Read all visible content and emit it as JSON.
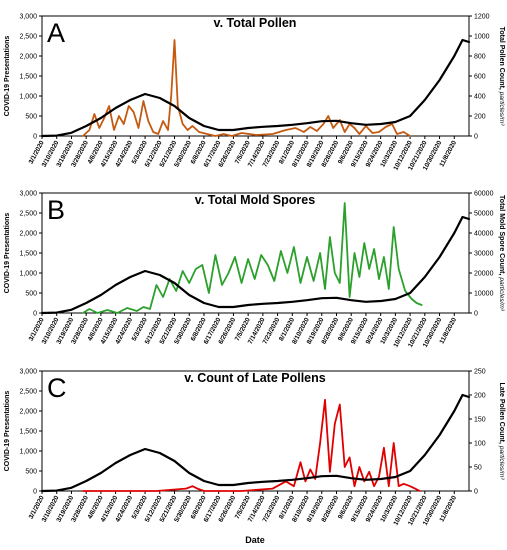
{
  "figure": {
    "xlabel": "Date",
    "x_ticks": [
      "3/1/2020",
      "3/10/2020",
      "3/19/2020",
      "3/28/2020",
      "4/6/2020",
      "4/15/2020",
      "4/24/2020",
      "5/3/2020",
      "5/12/2020",
      "5/21/2020",
      "5/30/2020",
      "6/8/2020",
      "6/17/2020",
      "6/26/2020",
      "7/5/2020",
      "7/14/2020",
      "7/23/2020",
      "8/1/2020",
      "8/10/2020",
      "8/19/2020",
      "8/28/2020",
      "9/6/2020",
      "9/15/2020",
      "9/24/2020",
      "10/3/2020",
      "10/12/2020",
      "10/21/2020",
      "10/30/2020",
      "11/8/2020"
    ]
  },
  "chart_data": [
    {
      "type": "line",
      "panel_letter": "A",
      "title": "v. Total Pollen",
      "ylabel_left": "COVID-19 Presentations",
      "ylabel_right_main": "Total Pollen Count, ",
      "ylabel_right_unit": "particles/m³",
      "ylim_left": [
        0,
        3000
      ],
      "ylim_right": [
        0,
        1200
      ],
      "yticks_left": [
        "0",
        "500",
        "1,000",
        "1,500",
        "2,000",
        "2,500",
        "3,000"
      ],
      "yticks_right": [
        "0",
        "200",
        "400",
        "600",
        "800",
        "1000",
        "1200"
      ],
      "series": [
        {
          "axis": "left",
          "color": "#000000",
          "x": [
            "3/1/2020",
            "3/10/2020",
            "3/19/2020",
            "3/28/2020",
            "4/6/2020",
            "4/15/2020",
            "4/24/2020",
            "5/3/2020",
            "5/12/2020",
            "5/21/2020",
            "5/30/2020",
            "6/8/2020",
            "6/17/2020",
            "6/26/2020",
            "7/5/2020",
            "7/14/2020",
            "7/23/2020",
            "8/1/2020",
            "8/10/2020",
            "8/19/2020",
            "8/28/2020",
            "9/6/2020",
            "9/15/2020",
            "9/24/2020",
            "10/3/2020",
            "10/12/2020",
            "10/21/2020",
            "10/30/2020",
            "11/8/2020",
            "11/13/2020",
            "11/17/2020"
          ],
          "values": [
            0,
            10,
            80,
            250,
            450,
            700,
            900,
            1050,
            950,
            750,
            450,
            250,
            150,
            150,
            200,
            230,
            250,
            280,
            320,
            370,
            380,
            320,
            280,
            300,
            350,
            500,
            900,
            1400,
            2000,
            2400,
            2350
          ]
        },
        {
          "axis": "right",
          "color": "#c55a11",
          "x": [
            "3/26/2020",
            "3/30/2020",
            "4/2/2020",
            "4/5/2020",
            "4/8/2020",
            "4/11/2020",
            "4/14/2020",
            "4/17/2020",
            "4/20/2020",
            "4/23/2020",
            "4/26/2020",
            "4/29/2020",
            "5/2/2020",
            "5/5/2020",
            "5/8/2020",
            "5/11/2020",
            "5/14/2020",
            "5/17/2020",
            "5/19/2020",
            "5/21/2020",
            "5/23/2020",
            "5/26/2020",
            "5/29/2020",
            "6/1/2020",
            "6/5/2020",
            "6/10/2020",
            "6/15/2020",
            "6/20/2020",
            "6/25/2020",
            "7/1/2020",
            "7/10/2020",
            "7/20/2020",
            "7/28/2020",
            "8/3/2020",
            "8/8/2020",
            "8/12/2020",
            "8/16/2020",
            "8/20/2020",
            "8/23/2020",
            "8/26/2020",
            "8/30/2020",
            "9/2/2020",
            "9/5/2020",
            "9/8/2020",
            "9/11/2020",
            "9/15/2020",
            "9/19/2020",
            "9/23/2020",
            "9/27/2020",
            "10/1/2020",
            "10/4/2020",
            "10/8/2020",
            "10/12/2020"
          ],
          "values": [
            0,
            60,
            220,
            80,
            180,
            300,
            60,
            200,
            120,
            300,
            240,
            80,
            350,
            150,
            40,
            20,
            150,
            60,
            400,
            960,
            300,
            120,
            60,
            100,
            40,
            20,
            0,
            20,
            0,
            30,
            10,
            20,
            60,
            80,
            40,
            90,
            50,
            120,
            200,
            80,
            160,
            40,
            120,
            80,
            20,
            100,
            30,
            40,
            90,
            120,
            20,
            40,
            0
          ]
        }
      ]
    },
    {
      "type": "line",
      "panel_letter": "B",
      "title": "v. Total Mold Spores",
      "ylabel_left": "COVID-19 Presentations",
      "ylabel_right_main": "Total Mold Spore Count, ",
      "ylabel_right_unit": "particles/m³",
      "ylim_left": [
        0,
        3000
      ],
      "ylim_right": [
        0,
        60000
      ],
      "yticks_left": [
        "0",
        "500",
        "1,000",
        "1,500",
        "2,000",
        "2,500",
        "3,000"
      ],
      "yticks_right": [
        "0",
        "10000",
        "20000",
        "30000",
        "40000",
        "50000",
        "60000"
      ],
      "series": [
        {
          "axis": "left",
          "color": "#000000",
          "x": [
            "3/1/2020",
            "3/10/2020",
            "3/19/2020",
            "3/28/2020",
            "4/6/2020",
            "4/15/2020",
            "4/24/2020",
            "5/3/2020",
            "5/12/2020",
            "5/21/2020",
            "5/30/2020",
            "6/8/2020",
            "6/17/2020",
            "6/26/2020",
            "7/5/2020",
            "7/14/2020",
            "7/23/2020",
            "8/1/2020",
            "8/10/2020",
            "8/19/2020",
            "8/28/2020",
            "9/6/2020",
            "9/15/2020",
            "9/24/2020",
            "10/3/2020",
            "10/12/2020",
            "10/21/2020",
            "10/30/2020",
            "11/8/2020",
            "11/13/2020",
            "11/17/2020"
          ],
          "values": [
            0,
            10,
            80,
            250,
            450,
            700,
            900,
            1050,
            950,
            750,
            450,
            250,
            150,
            150,
            200,
            230,
            250,
            280,
            320,
            370,
            380,
            320,
            280,
            300,
            350,
            500,
            900,
            1400,
            2000,
            2400,
            2350
          ]
        },
        {
          "axis": "right",
          "color": "#2ca02c",
          "x": [
            "3/26/2020",
            "3/30/2020",
            "4/4/2020",
            "4/10/2020",
            "4/16/2020",
            "4/22/2020",
            "4/28/2020",
            "5/2/2020",
            "5/6/2020",
            "5/10/2020",
            "5/14/2020",
            "5/18/2020",
            "5/22/2020",
            "5/26/2020",
            "5/30/2020",
            "6/3/2020",
            "6/7/2020",
            "6/11/2020",
            "6/15/2020",
            "6/19/2020",
            "6/23/2020",
            "6/27/2020",
            "7/1/2020",
            "7/5/2020",
            "7/9/2020",
            "7/13/2020",
            "7/17/2020",
            "7/21/2020",
            "7/25/2020",
            "7/29/2020",
            "8/2/2020",
            "8/6/2020",
            "8/10/2020",
            "8/14/2020",
            "8/18/2020",
            "8/21/2020",
            "8/24/2020",
            "8/27/2020",
            "8/30/2020",
            "9/2/2020",
            "9/5/2020",
            "9/8/2020",
            "9/11/2020",
            "9/14/2020",
            "9/17/2020",
            "9/20/2020",
            "9/23/2020",
            "9/26/2020",
            "9/29/2020",
            "10/2/2020",
            "10/5/2020",
            "10/9/2020",
            "10/13/2020",
            "10/16/2020",
            "10/19/2020"
          ],
          "values": [
            0,
            2000,
            0,
            1500,
            0,
            2500,
            1000,
            3000,
            2000,
            14000,
            8000,
            17000,
            11000,
            21000,
            15000,
            22000,
            24000,
            10000,
            29000,
            14000,
            20000,
            28000,
            15000,
            27000,
            17000,
            29000,
            24000,
            16000,
            31000,
            20000,
            33000,
            15000,
            28000,
            16000,
            30000,
            12000,
            38000,
            20000,
            15000,
            55000,
            8000,
            30000,
            18000,
            35000,
            22000,
            32000,
            17000,
            28000,
            12000,
            43000,
            22000,
            11000,
            7000,
            5000,
            4000
          ]
        }
      ]
    },
    {
      "type": "line",
      "panel_letter": "C",
      "title": "v. Count of Late Pollens",
      "ylabel_left": "COVID-19 Presentations",
      "ylabel_right_main": "Late Pollen Count, ",
      "ylabel_right_unit": "particles/m³",
      "ylim_left": [
        0,
        3000
      ],
      "ylim_right": [
        0,
        250
      ],
      "yticks_left": [
        "0",
        "500",
        "1,000",
        "1,500",
        "2,000",
        "2,500",
        "3,000"
      ],
      "yticks_right": [
        "0",
        "50",
        "100",
        "150",
        "200",
        "250"
      ],
      "series": [
        {
          "axis": "left",
          "color": "#000000",
          "x": [
            "3/1/2020",
            "3/10/2020",
            "3/19/2020",
            "3/28/2020",
            "4/6/2020",
            "4/15/2020",
            "4/24/2020",
            "5/3/2020",
            "5/12/2020",
            "5/21/2020",
            "5/30/2020",
            "6/8/2020",
            "6/17/2020",
            "6/26/2020",
            "7/5/2020",
            "7/14/2020",
            "7/23/2020",
            "8/1/2020",
            "8/10/2020",
            "8/19/2020",
            "8/28/2020",
            "9/6/2020",
            "9/15/2020",
            "9/24/2020",
            "10/3/2020",
            "10/12/2020",
            "10/21/2020",
            "10/30/2020",
            "11/8/2020",
            "11/13/2020",
            "11/17/2020"
          ],
          "values": [
            0,
            10,
            80,
            250,
            450,
            700,
            900,
            1050,
            950,
            750,
            450,
            250,
            150,
            150,
            200,
            230,
            250,
            280,
            320,
            370,
            380,
            320,
            280,
            300,
            350,
            500,
            900,
            1400,
            2000,
            2400,
            2350
          ]
        },
        {
          "axis": "right",
          "color": "#e00000",
          "x": [
            "3/26/2020",
            "4/15/2020",
            "5/10/2020",
            "5/28/2020",
            "6/1/2020",
            "6/4/2020",
            "6/8/2020",
            "7/1/2020",
            "7/20/2020",
            "7/28/2020",
            "8/2/2020",
            "8/6/2020",
            "8/9/2020",
            "8/12/2020",
            "8/15/2020",
            "8/18/2020",
            "8/21/2020",
            "8/24/2020",
            "8/27/2020",
            "8/30/2020",
            "9/2/2020",
            "9/5/2020",
            "9/8/2020",
            "9/11/2020",
            "9/14/2020",
            "9/17/2020",
            "9/20/2020",
            "9/23/2020",
            "9/26/2020",
            "9/29/2020",
            "10/2/2020",
            "10/5/2020",
            "10/8/2020",
            "10/12/2020",
            "10/15/2020",
            "10/18/2020"
          ],
          "values": [
            0,
            0,
            0,
            5,
            10,
            5,
            0,
            0,
            5,
            20,
            10,
            60,
            20,
            45,
            25,
            100,
            190,
            40,
            140,
            180,
            50,
            70,
            10,
            50,
            20,
            40,
            10,
            30,
            90,
            10,
            100,
            10,
            15,
            10,
            5,
            0
          ]
        }
      ]
    }
  ]
}
